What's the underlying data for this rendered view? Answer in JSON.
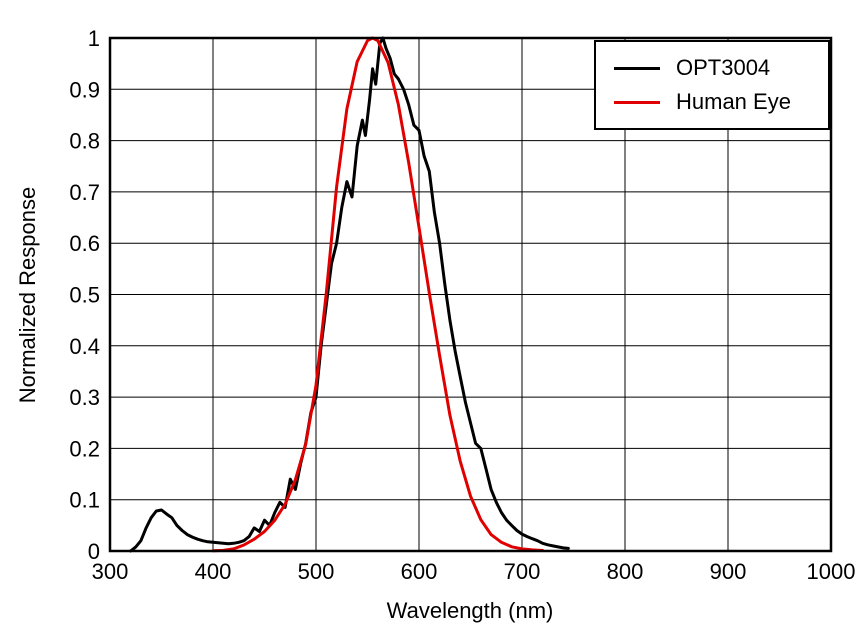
{
  "chart_data": {
    "type": "line",
    "title": "",
    "xlabel": "Wavelength (nm)",
    "ylabel": "Normalized Response",
    "xlim": [
      300,
      1000
    ],
    "ylim": [
      0,
      1
    ],
    "xticks": [
      300,
      400,
      500,
      600,
      700,
      800,
      900,
      1000
    ],
    "yticks": [
      0,
      0.1,
      0.2,
      0.3,
      0.4,
      0.5,
      0.6,
      0.7,
      0.8,
      0.9,
      1
    ],
    "grid": true,
    "legend_position": "top-right",
    "colors": {
      "axis": "#000000",
      "grid": "#000000",
      "background": "#ffffff"
    },
    "series": [
      {
        "name": "OPT3004",
        "color": "#000000",
        "x": [
          320,
          325,
          330,
          335,
          340,
          345,
          350,
          355,
          360,
          365,
          370,
          375,
          380,
          385,
          390,
          395,
          400,
          405,
          410,
          415,
          420,
          425,
          430,
          435,
          440,
          445,
          450,
          455,
          460,
          465,
          470,
          475,
          480,
          485,
          490,
          495,
          500,
          505,
          510,
          515,
          520,
          525,
          530,
          535,
          540,
          545,
          548,
          552,
          555,
          558,
          562,
          565,
          568,
          572,
          576,
          580,
          585,
          590,
          595,
          600,
          605,
          610,
          615,
          620,
          625,
          630,
          635,
          640,
          645,
          650,
          655,
          660,
          665,
          670,
          675,
          680,
          685,
          690,
          695,
          700,
          705,
          710,
          715,
          720,
          725,
          730,
          735,
          740,
          745
        ],
        "y": [
          0.0,
          0.008,
          0.02,
          0.045,
          0.065,
          0.078,
          0.08,
          0.072,
          0.065,
          0.05,
          0.04,
          0.032,
          0.027,
          0.023,
          0.02,
          0.018,
          0.017,
          0.016,
          0.015,
          0.014,
          0.015,
          0.017,
          0.02,
          0.028,
          0.045,
          0.038,
          0.06,
          0.05,
          0.075,
          0.095,
          0.085,
          0.14,
          0.12,
          0.17,
          0.21,
          0.27,
          0.3,
          0.4,
          0.48,
          0.56,
          0.6,
          0.67,
          0.72,
          0.69,
          0.79,
          0.84,
          0.81,
          0.88,
          0.94,
          0.91,
          0.99,
          1.0,
          0.98,
          0.96,
          0.93,
          0.92,
          0.9,
          0.87,
          0.83,
          0.82,
          0.77,
          0.74,
          0.66,
          0.6,
          0.52,
          0.45,
          0.39,
          0.34,
          0.29,
          0.25,
          0.21,
          0.2,
          0.16,
          0.12,
          0.095,
          0.075,
          0.06,
          0.05,
          0.04,
          0.033,
          0.028,
          0.024,
          0.02,
          0.015,
          0.012,
          0.01,
          0.008,
          0.006,
          0.005
        ]
      },
      {
        "name": "Human Eye",
        "color": "#e00000",
        "x": [
          400,
          410,
          420,
          430,
          440,
          450,
          460,
          470,
          480,
          490,
          500,
          510,
          520,
          530,
          540,
          550,
          555,
          560,
          570,
          580,
          590,
          600,
          610,
          620,
          630,
          640,
          650,
          660,
          670,
          680,
          690,
          700,
          710,
          720
        ],
        "y": [
          0.0004,
          0.0012,
          0.004,
          0.0116,
          0.023,
          0.038,
          0.06,
          0.091,
          0.139,
          0.208,
          0.323,
          0.503,
          0.71,
          0.862,
          0.954,
          0.995,
          1.0,
          0.995,
          0.952,
          0.87,
          0.757,
          0.631,
          0.503,
          0.381,
          0.265,
          0.175,
          0.107,
          0.061,
          0.032,
          0.017,
          0.0082,
          0.0041,
          0.0021,
          0.001
        ]
      }
    ]
  }
}
